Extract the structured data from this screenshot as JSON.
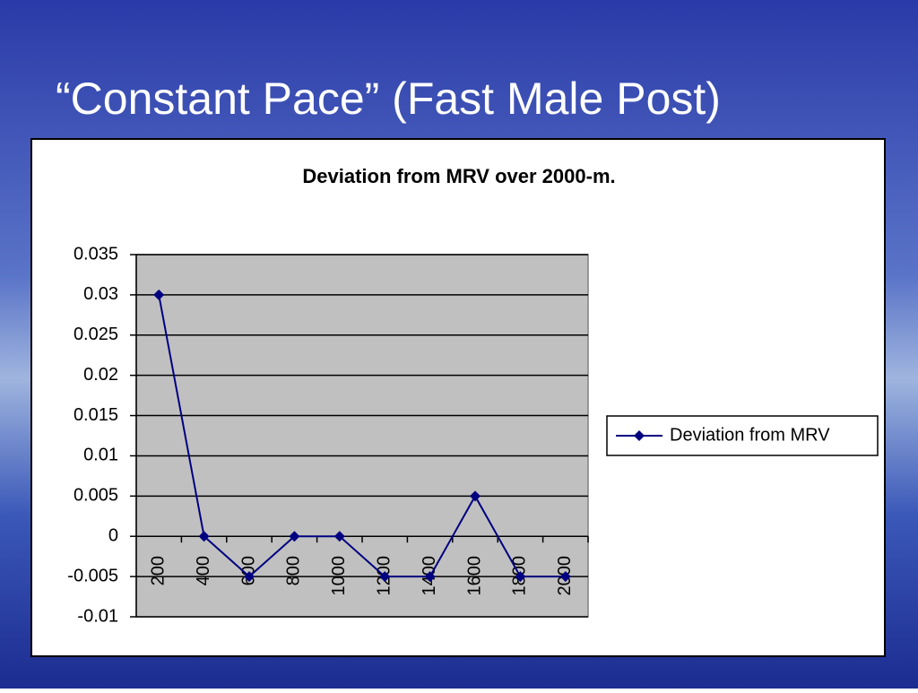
{
  "slide_title": "“Constant Pace” (Fast Male Post)",
  "chart_data": {
    "type": "line",
    "title": "Deviation from MRV over 2000-m.",
    "categories": [
      "200",
      "400",
      "600",
      "800",
      "1000",
      "1200",
      "1400",
      "1600",
      "1800",
      "2000"
    ],
    "series": [
      {
        "name": "Deviation from MRV",
        "color": "#000080",
        "values": [
          0.03,
          0,
          -0.005,
          0,
          0,
          -0.005,
          -0.005,
          0.005,
          -0.005,
          -0.005
        ]
      }
    ],
    "ylim": [
      -0.01,
      0.035
    ],
    "yticks": [
      -0.01,
      -0.005,
      0,
      0.005,
      0.01,
      0.015,
      0.02,
      0.025,
      0.03,
      0.035
    ],
    "grid": true,
    "legend": "right"
  }
}
